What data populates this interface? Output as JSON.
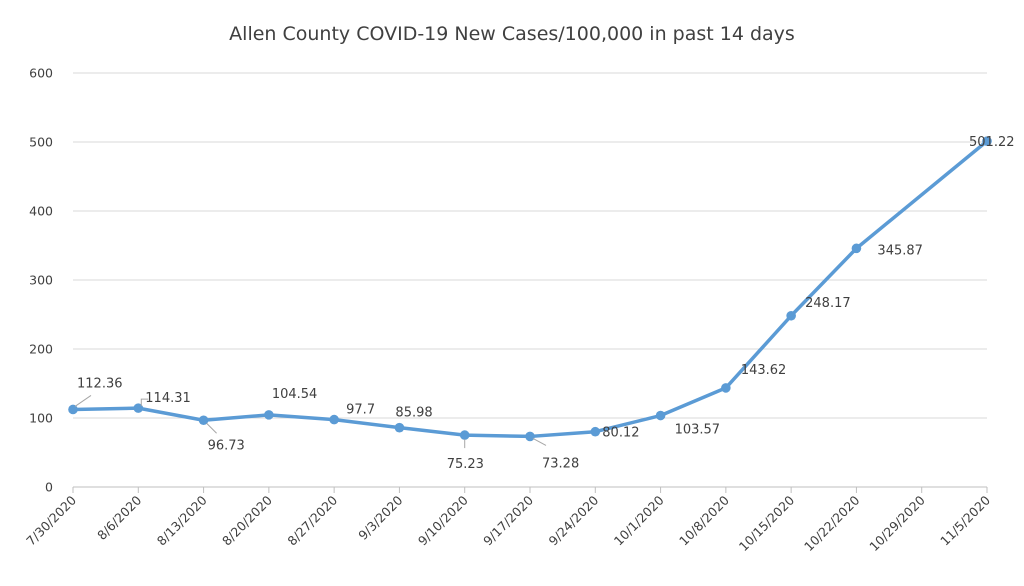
{
  "chart_data": {
    "type": "line",
    "title": "Allen County COVID-19 New Cases/100,000 in past 14 days",
    "xlabel": "",
    "ylabel": "",
    "ylim": [
      0,
      600
    ],
    "yticks": [
      0,
      100,
      200,
      300,
      400,
      500,
      600
    ],
    "grid": true,
    "legend": "none",
    "categories": [
      "7/30/2020",
      "8/6/2020",
      "8/13/2020",
      "8/20/2020",
      "8/27/2020",
      "9/3/2020",
      "9/10/2020",
      "9/17/2020",
      "9/24/2020",
      "10/1/2020",
      "10/8/2020",
      "10/15/2020",
      "10/22/2020",
      "10/29/2020",
      "11/5/2020"
    ],
    "series": [
      {
        "color": "#5b9bd5",
        "points": [
          {
            "x": "7/30/2020",
            "y": 112.36,
            "label": "112.36"
          },
          {
            "x": "8/6/2020",
            "y": 114.31,
            "label": "114.31"
          },
          {
            "x": "8/13/2020",
            "y": 96.73,
            "label": "96.73"
          },
          {
            "x": "8/20/2020",
            "y": 104.54,
            "label": "104.54"
          },
          {
            "x": "8/27/2020",
            "y": 97.7,
            "label": "97.7"
          },
          {
            "x": "9/3/2020",
            "y": 85.98,
            "label": "85.98"
          },
          {
            "x": "9/10/2020",
            "y": 75.23,
            "label": "75.23"
          },
          {
            "x": "9/17/2020",
            "y": 73.28,
            "label": "73.28"
          },
          {
            "x": "9/24/2020",
            "y": 80.12,
            "label": "80.12"
          },
          {
            "x": "10/1/2020",
            "y": 103.57,
            "label": "103.57"
          },
          {
            "x": "10/8/2020",
            "y": 143.62,
            "label": "143.62"
          },
          {
            "x": "10/15/2020",
            "y": 248.17,
            "label": "248.17"
          },
          {
            "x": "10/22/2020",
            "y": 345.87,
            "label": "345.87"
          },
          {
            "x": "11/5/2020",
            "y": 501.22,
            "label": "501.22"
          }
        ]
      }
    ]
  }
}
